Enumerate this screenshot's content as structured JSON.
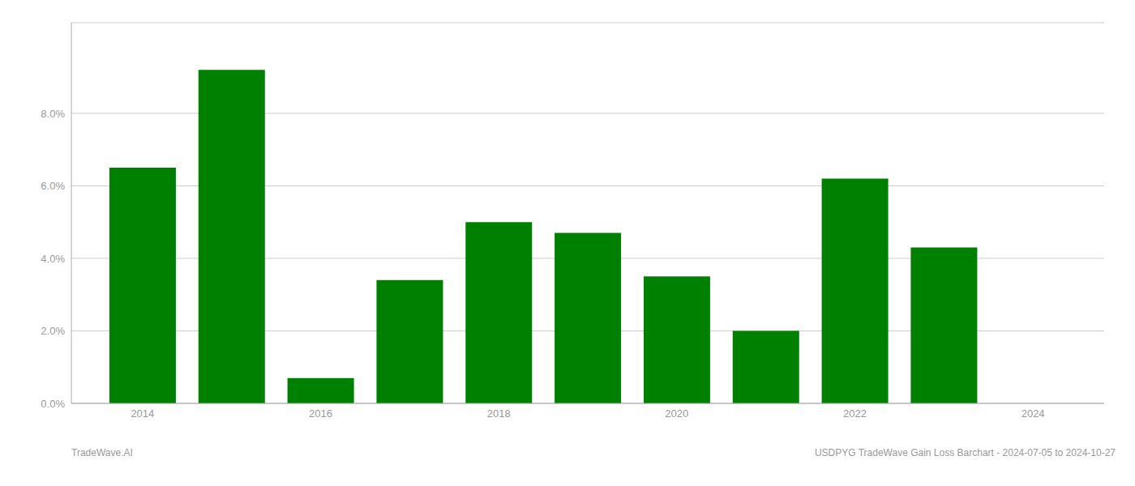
{
  "chart_data": {
    "type": "bar",
    "x": [
      2014,
      2015,
      2016,
      2017,
      2018,
      2019,
      2020,
      2021,
      2022,
      2023
    ],
    "values": [
      0.065,
      0.092,
      0.007,
      0.034,
      0.05,
      0.047,
      0.035,
      0.02,
      0.062,
      0.043
    ],
    "color": "#008000",
    "xlim": [
      2013.2,
      2024.8
    ],
    "xticks": [
      2014,
      2016,
      2018,
      2020,
      2022,
      2024
    ],
    "ylim": [
      0,
      0.105
    ],
    "yticks": [
      {
        "value": 0.0,
        "label": "0.0%"
      },
      {
        "value": 0.02,
        "label": "2.0%"
      },
      {
        "value": 0.04,
        "label": "4.0%"
      },
      {
        "value": 0.06,
        "label": "6.0%"
      },
      {
        "value": 0.08,
        "label": "8.0%"
      }
    ],
    "grid": true,
    "annotations": [
      "TradeWave.AI",
      "USDPYG TradeWave Gain Loss Barchart - 2024-07-05 to 2024-10-27"
    ]
  }
}
